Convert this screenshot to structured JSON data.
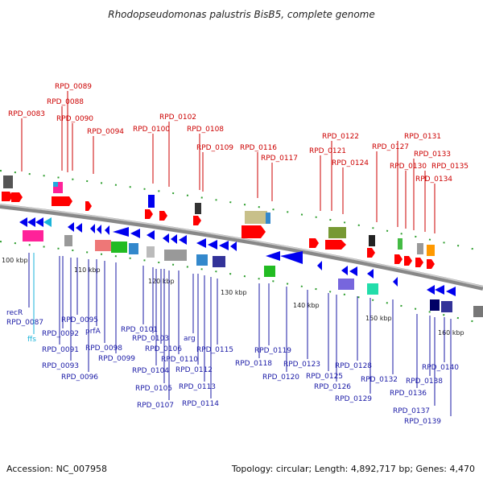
{
  "title": "Rhodopseudomonas palustris BisB5, complete genome",
  "footer": {
    "accession": "Accession: NC_007958",
    "summary": "Topology: circular; Length: 4,892,717 bp; Genes: 4,470"
  },
  "colors": {
    "forward": "#ff0000",
    "reverse": "#0000ee",
    "rna": "#1ab3d9",
    "backbone": "#888888"
  },
  "scale_labels": [
    "100 kbp",
    "110 kbp",
    "120 kbp",
    "130 kbp",
    "140 kbp",
    "150 kbp",
    "160 kbp"
  ],
  "top_labels": [
    "RPD_0083",
    "RPD_0089",
    "RPD_0088",
    "RPD_0090",
    "RPD_0094",
    "RPD_0100",
    "RPD_0102",
    "RPD_0108",
    "RPD_0109",
    "RPD_0116",
    "RPD_0117",
    "RPD_0122",
    "RPD_0121",
    "RPD_0124",
    "RPD_0127",
    "RPD_0131",
    "RPD_0130",
    "RPD_0133",
    "RPD_0135",
    "RPD_0134"
  ],
  "bottom_labels": [
    "recR",
    "RPD_0087",
    "ffs",
    "RPD_0092",
    "RPD_0095",
    "RPD_0091",
    "prfA",
    "RPD_0093",
    "RPD_0098",
    "RPD_0096",
    "RPD_0099",
    "RPD_0101",
    "RPD_0103",
    "RPD_0106",
    "arg",
    "RPD_0110",
    "RPD_0104",
    "RPD_0112",
    "RPD_0105",
    "RPD_0113",
    "RPD_0107",
    "RPD_0114",
    "RPD_0115",
    "RPD_0119",
    "RPD_0118",
    "RPD_0120",
    "RPD_0123",
    "RPD_0125",
    "RPD_0126",
    "RPD_0128",
    "RPD_0129",
    "RPD_0132",
    "RPD_0136",
    "RPD_0138",
    "RPD_0140",
    "RPD_0137",
    "RPD_0139"
  ]
}
